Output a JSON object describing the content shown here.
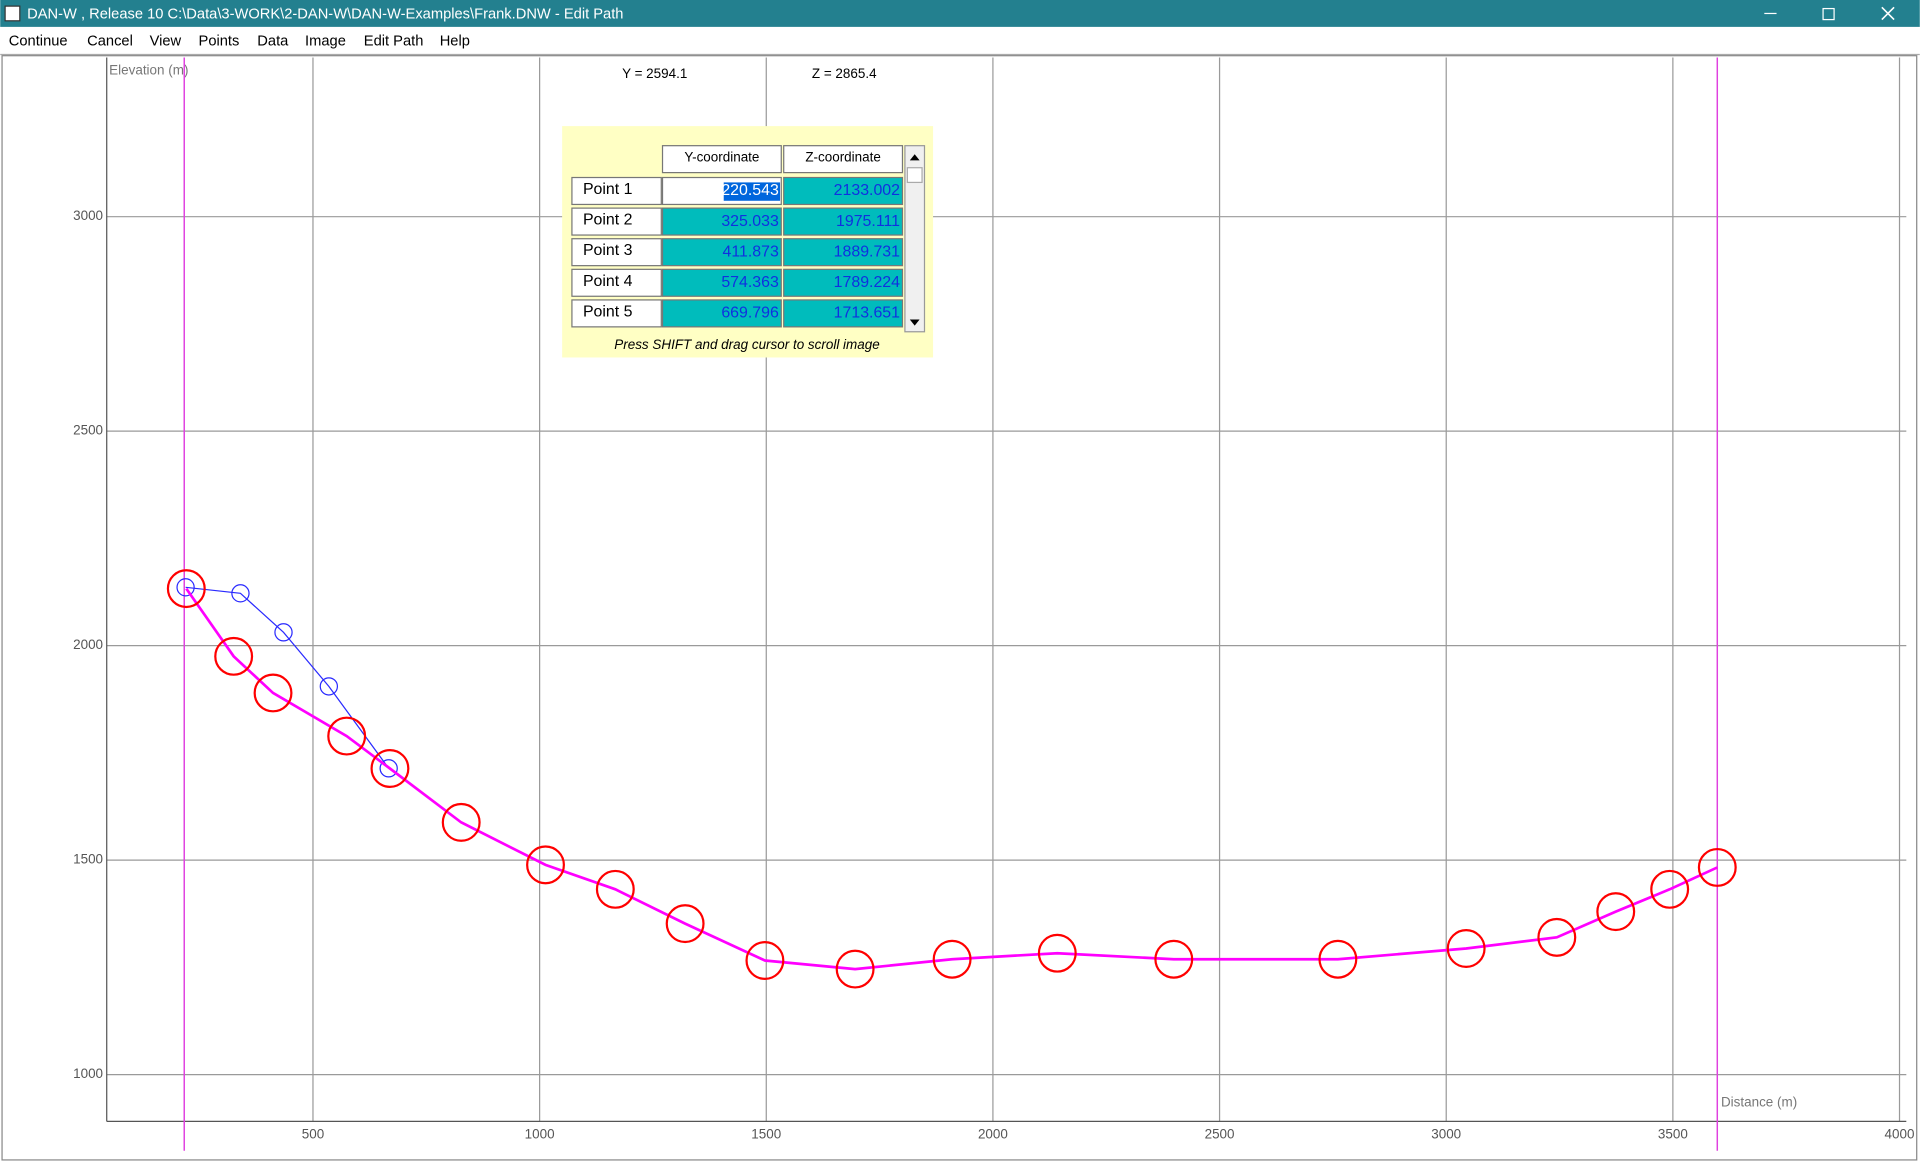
{
  "window": {
    "title": "DAN-W , Release 10  C:\\Data\\3-WORK\\2-DAN-W\\DAN-W-Examples\\Frank.DNW  - Edit Path"
  },
  "menu": [
    "Continue",
    "Cancel",
    "View",
    "Points",
    "Data",
    "Image",
    "Edit Path",
    "Help"
  ],
  "cursor": {
    "y_readout": "Y = 2594.1",
    "z_readout": "Z = 2865.4"
  },
  "table": {
    "headers": [
      "Y-coordinate",
      "Z-coordinate"
    ],
    "row_labels": [
      "Point 1",
      "Point 2",
      "Point 3",
      "Point 4",
      "Point 5"
    ],
    "note": "Press SHIFT and drag cursor to scroll image"
  },
  "chart_data": {
    "type": "line",
    "ylabel": "Elevation (m)",
    "xlabel": "Distance (m)",
    "xlim": [
      45,
      4015
    ],
    "ylim": [
      891,
      3371
    ],
    "xticks": [
      500,
      1000,
      1500,
      2000,
      2500,
      3000,
      3500,
      4000
    ],
    "yticks": [
      1000,
      1500,
      2000,
      2500,
      3000
    ],
    "grid": true,
    "vlines": [
      216,
      3598
    ],
    "vline_color": "#e040e0",
    "series": [
      {
        "color": "#ff00ff",
        "marker_color": "#ff0000",
        "x": [
          220.543,
          325.033,
          411.873,
          574.363,
          669.796,
          827,
          1013,
          1167,
          1321,
          1497,
          1696,
          1910,
          2142,
          2399,
          2761,
          3044,
          3244,
          3374,
          3493,
          3598
        ],
        "y": [
          2133.002,
          1975.111,
          1889.731,
          1789.224,
          1713.651,
          1588,
          1489,
          1432,
          1352,
          1266,
          1246,
          1269,
          1283,
          1269,
          1269,
          1294,
          1320,
          1380,
          1432,
          1483
        ]
      },
      {
        "color": "#2a2aff",
        "marker_color": "#2a2aff",
        "x": [
          219,
          340,
          435,
          535,
          667
        ],
        "y": [
          2136,
          2122,
          2031,
          1905,
          1714
        ]
      }
    ]
  }
}
